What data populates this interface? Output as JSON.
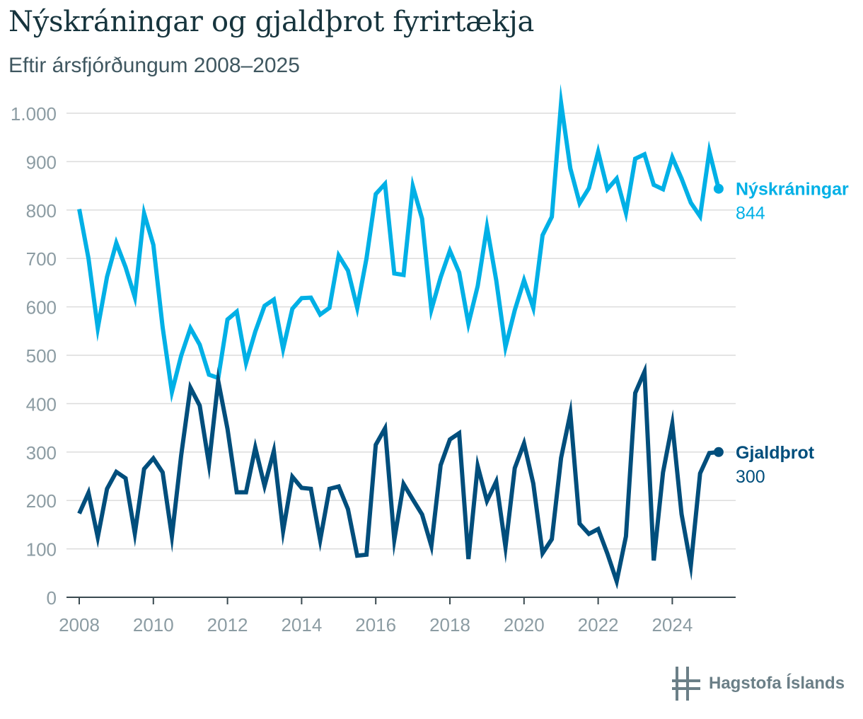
{
  "title": "Nýskráningar og gjaldþrot fyrirtækja",
  "subtitle": "Eftir ársfjórðungum 2008–2025",
  "brand": "Hagstofa Íslands",
  "colors": {
    "nyskraningar": "#00b0e6",
    "gjaldthrot": "#004e7c",
    "grid": "#dcdcdc",
    "axis_text": "#8c9ca3"
  },
  "chart_data": {
    "type": "line",
    "ylim": [
      0,
      1000
    ],
    "y_ticks": [
      0,
      100,
      200,
      300,
      400,
      500,
      600,
      700,
      800,
      900,
      1000
    ],
    "y_tick_labels": [
      "0",
      "100",
      "200",
      "300",
      "400",
      "500",
      "600",
      "700",
      "800",
      "900",
      "1.000"
    ],
    "x_ticks": [
      2008,
      2010,
      2012,
      2014,
      2016,
      2018,
      2020,
      2022,
      2024
    ],
    "x_tick_labels": [
      "2008",
      "2010",
      "2012",
      "2014",
      "2016",
      "2018",
      "2020",
      "2022",
      "2024"
    ],
    "x_start_year": 2008,
    "points_per_year": 4,
    "grid": true,
    "series": [
      {
        "name": "Nýskráningar",
        "end_label": "844",
        "color": "#00b0e6",
        "values": [
          802,
          700,
          556,
          662,
          732,
          682,
          620,
          793,
          728,
          558,
          424,
          499,
          556,
          522,
          460,
          453,
          574,
          590,
          484,
          549,
          602,
          615,
          513,
          596,
          618,
          619,
          584,
          598,
          706,
          675,
          598,
          700,
          833,
          854,
          669,
          666,
          849,
          782,
          594,
          661,
          716,
          671,
          565,
          643,
          765,
          655,
          517,
          593,
          655,
          598,
          748,
          786,
          1021,
          886,
          814,
          845,
          920,
          843,
          865,
          794,
          906,
          915,
          852,
          843,
          909,
          865,
          815,
          787,
          921,
          844
        ]
      },
      {
        "name": "Gjaldþrot",
        "end_label": "300",
        "color": "#004e7c",
        "values": [
          173,
          216,
          124,
          224,
          259,
          246,
          132,
          265,
          287,
          258,
          126,
          293,
          433,
          396,
          275,
          447,
          348,
          217,
          217,
          309,
          230,
          302,
          137,
          249,
          226,
          224,
          118,
          224,
          229,
          182,
          86,
          88,
          315,
          349,
          119,
          234,
          202,
          171,
          106,
          273,
          326,
          339,
          79,
          271,
          199,
          239,
          104,
          267,
          318,
          235,
          91,
          120,
          288,
          380,
          152,
          131,
          141,
          90,
          33,
          126,
          422,
          466,
          76,
          258,
          358,
          172,
          66,
          256,
          298,
          300
        ]
      }
    ]
  }
}
